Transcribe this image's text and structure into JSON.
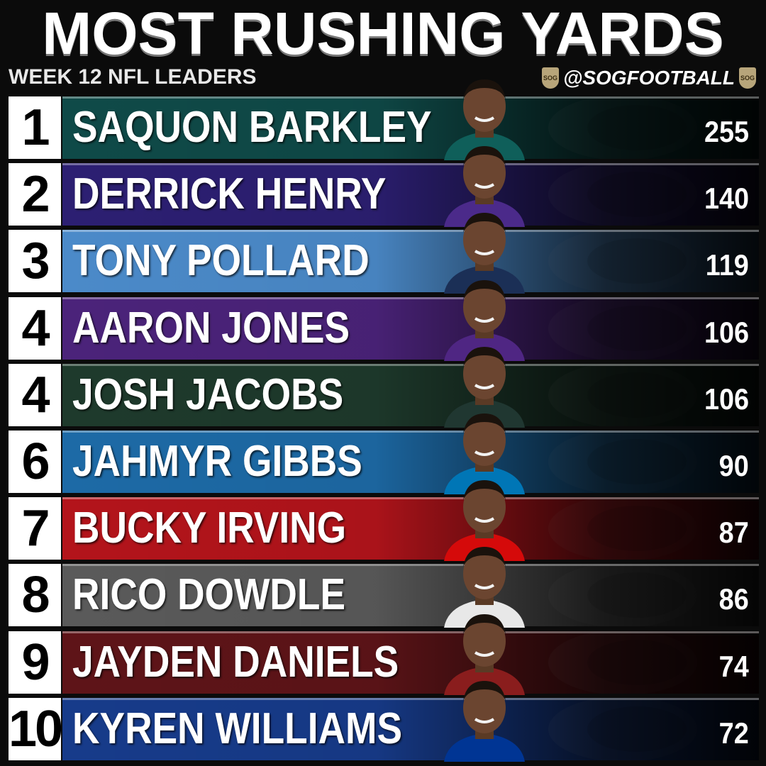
{
  "header": {
    "title": "MOST RUSHING YARDS",
    "subtitle": "WEEK 12 NFL LEADERS",
    "handle": "@SOGFOOTBALL",
    "badge": "SOG"
  },
  "colors": {
    "background": "#0b0b0b",
    "rank_box": "#ffffff"
  },
  "leaders": [
    {
      "rank": "1",
      "name": "SAQUON BARKLEY",
      "yards": "255",
      "team_color": "#0f4a48",
      "logo": "eagle-logo-icon",
      "jersey": "#0f5f5a"
    },
    {
      "rank": "2",
      "name": "DERRICK HENRY",
      "yards": "140",
      "team_color": "#2c1f72",
      "logo": "raven-logo-icon",
      "jersey": "#4b2a8a"
    },
    {
      "rank": "3",
      "name": "TONY POLLARD",
      "yards": "119",
      "team_color": "#4b8ac9",
      "logo": "titans-logo-icon",
      "jersey": "#1b2f56"
    },
    {
      "rank": "4",
      "name": "AARON JONES",
      "yards": "106",
      "team_color": "#4b237a",
      "logo": "viking-logo-icon",
      "jersey": "#4f2683"
    },
    {
      "rank": "4",
      "name": "JOSH JACOBS",
      "yards": "106",
      "team_color": "#1e3a2c",
      "logo": "packers-logo-icon",
      "jersey": "#203731"
    },
    {
      "rank": "6",
      "name": "JAHMYR GIBBS",
      "yards": "90",
      "team_color": "#1d6aa6",
      "logo": "lion-logo-icon",
      "jersey": "#0076b6"
    },
    {
      "rank": "7",
      "name": "BUCKY IRVING",
      "yards": "87",
      "team_color": "#b3141b",
      "logo": "buccaneers-logo-icon",
      "jersey": "#d50a0a"
    },
    {
      "rank": "8",
      "name": "RICO DOWDLE",
      "yards": "86",
      "team_color": "#5a5a5a",
      "logo": "star-logo-icon",
      "jersey": "#e8e8e8"
    },
    {
      "rank": "9",
      "name": "JAYDEN DANIELS",
      "yards": "74",
      "team_color": "#5e1418",
      "logo": "commanders-logo-icon",
      "jersey": "#8a1d1d"
    },
    {
      "rank": "10",
      "name": "KYREN WILLIAMS",
      "yards": "72",
      "team_color": "#173b8a",
      "logo": "rams-logo-icon",
      "jersey": "#003594"
    }
  ]
}
